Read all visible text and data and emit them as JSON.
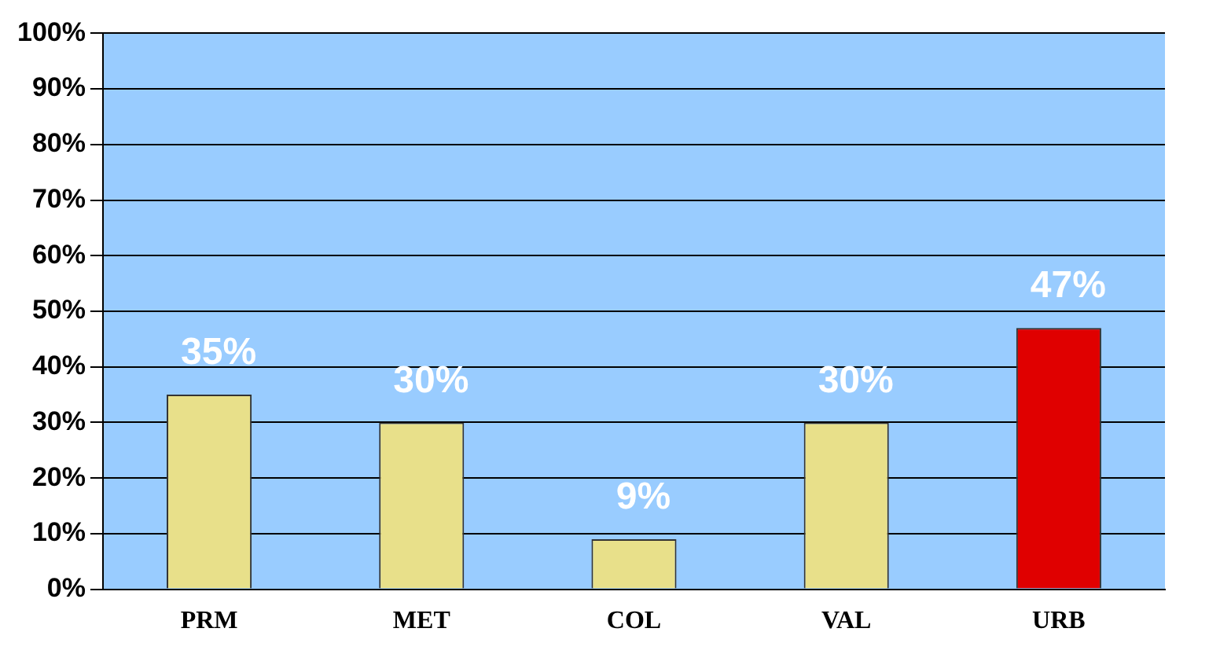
{
  "chart_data": {
    "type": "bar",
    "categories": [
      "PRM",
      "MET",
      "COL",
      "VAL",
      "URB"
    ],
    "values": [
      35,
      30,
      9,
      30,
      47
    ],
    "colors": [
      "#e8e08a",
      "#e8e08a",
      "#e8e08a",
      "#e8e08a",
      "#e00000"
    ],
    "value_labels": [
      "35%",
      "30%",
      "9%",
      "30%",
      "47%"
    ],
    "ylim": [
      0,
      100
    ],
    "yticks": [
      {
        "value": 0,
        "label": "0%"
      },
      {
        "value": 10,
        "label": "10%"
      },
      {
        "value": 20,
        "label": "20%"
      },
      {
        "value": 30,
        "label": "30%"
      },
      {
        "value": 40,
        "label": "40%"
      },
      {
        "value": 50,
        "label": "50%"
      },
      {
        "value": 60,
        "label": "60%"
      },
      {
        "value": 70,
        "label": "70%"
      },
      {
        "value": 80,
        "label": "80%"
      },
      {
        "value": 90,
        "label": "90%"
      },
      {
        "value": 100,
        "label": "100%"
      }
    ],
    "grid": "y",
    "legend": false
  }
}
